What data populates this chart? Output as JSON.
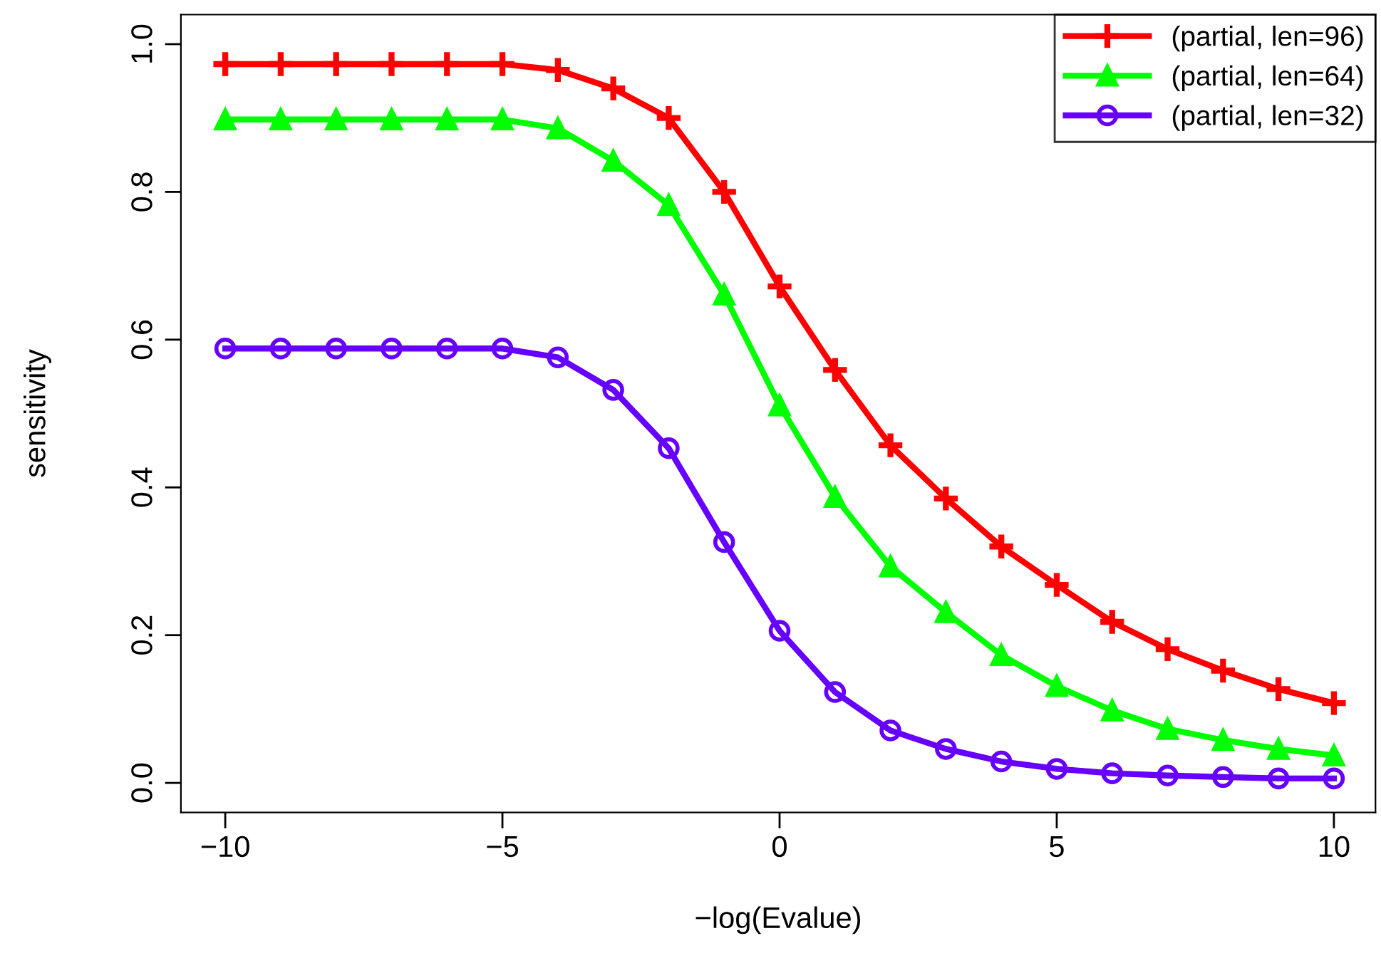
{
  "chart_data": {
    "type": "line",
    "xlabel": "−log(Evalue)",
    "ylabel": "sensitivity",
    "x": [
      -10,
      -9,
      -8,
      -7,
      -6,
      -5,
      -4,
      -3,
      -2,
      -1,
      0,
      1,
      2,
      3,
      4,
      5,
      6,
      7,
      8,
      9,
      10
    ],
    "series": [
      {
        "name": "(partial, len=96)",
        "color": "#ff0000",
        "marker": "cross",
        "values": [
          0.973,
          0.973,
          0.973,
          0.973,
          0.973,
          0.973,
          0.965,
          0.94,
          0.9,
          0.8,
          0.672,
          0.559,
          0.457,
          0.385,
          0.32,
          0.268,
          0.218,
          0.181,
          0.152,
          0.127,
          0.108
        ]
      },
      {
        "name": "(partial, len=64)",
        "color": "#00ff00",
        "marker": "triangle",
        "values": [
          0.898,
          0.898,
          0.898,
          0.898,
          0.898,
          0.898,
          0.886,
          0.842,
          0.782,
          0.661,
          0.511,
          0.387,
          0.293,
          0.231,
          0.173,
          0.131,
          0.098,
          0.073,
          0.058,
          0.046,
          0.037
        ]
      },
      {
        "name": "(partial, len=32)",
        "color": "#6600ff",
        "marker": "circle",
        "values": [
          0.588,
          0.588,
          0.588,
          0.588,
          0.588,
          0.588,
          0.576,
          0.532,
          0.453,
          0.326,
          0.206,
          0.123,
          0.071,
          0.046,
          0.029,
          0.019,
          0.013,
          0.01,
          0.008,
          0.006,
          0.006
        ]
      }
    ],
    "xlim": [
      -10.8,
      10.75
    ],
    "ylim": [
      -0.04,
      1.04
    ],
    "xticks": [
      {
        "value": -10,
        "label": "−10"
      },
      {
        "value": -5,
        "label": "−5"
      },
      0,
      5,
      10
    ],
    "yticks": [
      {
        "value": 0,
        "label": "0.0"
      },
      0.2,
      0.4,
      0.6,
      0.8,
      {
        "value": 1,
        "label": "1.0"
      }
    ],
    "grid": false,
    "legend": "top right",
    "line_style": "solid"
  }
}
